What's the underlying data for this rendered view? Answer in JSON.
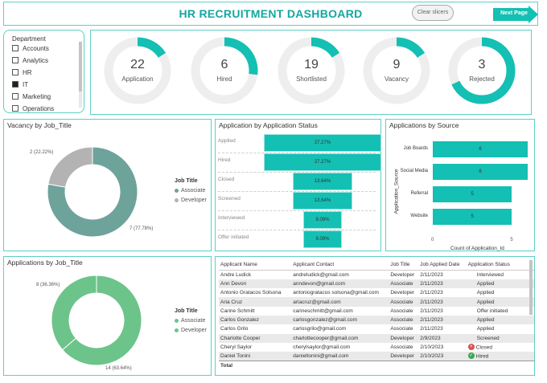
{
  "header": {
    "title": "HR RECRUITMENT DASHBOARD",
    "clear_slicers": "Clear slicers",
    "next_page": "Next Page"
  },
  "department": {
    "title": "Department",
    "items": [
      {
        "label": "Accounts",
        "checked": false
      },
      {
        "label": "Analytics",
        "checked": false
      },
      {
        "label": "HR",
        "checked": false
      },
      {
        "label": "IT",
        "checked": true
      },
      {
        "label": "Marketing",
        "checked": false
      },
      {
        "label": "Operations",
        "checked": false
      }
    ]
  },
  "kpis": [
    {
      "value": "22",
      "label": "Application",
      "fill": 0.16
    },
    {
      "value": "6",
      "label": "Hired",
      "fill": 0.27
    },
    {
      "value": "19",
      "label": "Shortlisted",
      "fill": 0.16
    },
    {
      "value": "9",
      "label": "Vacancy",
      "fill": 0.16
    },
    {
      "value": "3",
      "label": "Rejected",
      "fill": 0.68
    }
  ],
  "vacancy": {
    "title": "Vacancy by Job_Title",
    "legend_title": "Job Title",
    "label_developer": "2 (22.22%)",
    "label_associate": "7 (77.78%)"
  },
  "applications_by_job": {
    "title": "Applications by Job_Title",
    "legend_title": "Job Title",
    "label_developer": "8 (36.36%)",
    "label_associate": "14 (63.64%)"
  },
  "status_funnel": {
    "title": "Application by Application Status"
  },
  "source": {
    "title": "Applications by Source",
    "y_axis_label": "Application_Source",
    "x_axis_label": "Count of Application_Id"
  },
  "chart_data": [
    {
      "type": "pie",
      "title": "Vacancy by Job_Title",
      "categories": [
        "Associate",
        "Developer"
      ],
      "values": [
        7,
        2
      ],
      "labels": [
        "7 (77.78%)",
        "2 (22.22%)"
      ],
      "colors": [
        "#6ea39c",
        "#b3b3b3"
      ]
    },
    {
      "type": "bar",
      "title": "Application by Application Status",
      "categories": [
        "Applied",
        "Hired",
        "Closed",
        "Screened",
        "Interviewed",
        "Offer initiated"
      ],
      "values": [
        27.27,
        27.27,
        13.64,
        13.64,
        9.09,
        9.09
      ],
      "data_labels": [
        "27.27%",
        "27.27%",
        "13.64%",
        "13.64%",
        "9.09%",
        "9.09%"
      ]
    },
    {
      "type": "bar",
      "title": "Applications by Source",
      "categories": [
        "Job Boards",
        "Social Media",
        "Referral",
        "Website"
      ],
      "values": [
        6,
        6,
        5,
        5
      ],
      "xlabel": "Count of Application_Id",
      "ylabel": "Application_Source",
      "xlim": [
        0,
        6
      ],
      "ticks": [
        "0",
        "5"
      ]
    },
    {
      "type": "pie",
      "title": "Applications by Job_Title",
      "categories": [
        "Associate",
        "Developer"
      ],
      "values": [
        14,
        8
      ],
      "labels": [
        "14 (63.64%)",
        "8 (36.36%)"
      ],
      "colors": [
        "#6cc48a",
        "#6cc48a"
      ]
    }
  ],
  "table": {
    "columns": [
      "Applicant Name",
      "Applicant Contact",
      "Job Title",
      "Job Applied Date",
      "Application Status"
    ],
    "rows": [
      [
        "Andre Ludick",
        "andreludick@gmail.com",
        "Developer",
        "2/11/2023",
        "Interviewed",
        ""
      ],
      [
        "Ann Devon",
        "anndevon@gmail.com",
        "Associate",
        "2/11/2023",
        "Applied",
        ""
      ],
      [
        "Antonio Gratacos Solsona",
        "antoniogratacos solsona@gmail.com",
        "Developer",
        "2/11/2023",
        "Applied",
        ""
      ],
      [
        "Aria Cruz",
        "ariacruz@gmail.com",
        "Associate",
        "2/11/2023",
        "Applied",
        ""
      ],
      [
        "Carine Schmitt",
        "carineschmitt@gmail.com",
        "Associate",
        "2/11/2023",
        "Offer initiated",
        ""
      ],
      [
        "Carlos Gonzalez",
        "carlosgonzalez@gmail.com",
        "Associate",
        "2/11/2023",
        "Applied",
        ""
      ],
      [
        "Carlos Grilo",
        "carlosgrilo@gmail.com",
        "Associate",
        "2/11/2023",
        "Applied",
        ""
      ],
      [
        "Charlotte Cooper",
        "charlottecooper@gmail.com",
        "Developer",
        "2/9/2023",
        "Screened",
        ""
      ],
      [
        "Cheryl Saylor",
        "cherylsaylor@gmail.com",
        "Associate",
        "2/10/2023",
        "Closed",
        "closed"
      ],
      [
        "Daniel Tonini",
        "danieltonini@gmail.com",
        "Developer",
        "2/10/2023",
        "Hired",
        "hired"
      ]
    ],
    "total_label": "Total"
  },
  "colors": {
    "accent": "#14bfb3",
    "border": "#5ecfc5",
    "title": "#11a8a0",
    "associate_slate": "#6ea39c",
    "developer_gray": "#b3b3b3",
    "green": "#6cc48a"
  }
}
